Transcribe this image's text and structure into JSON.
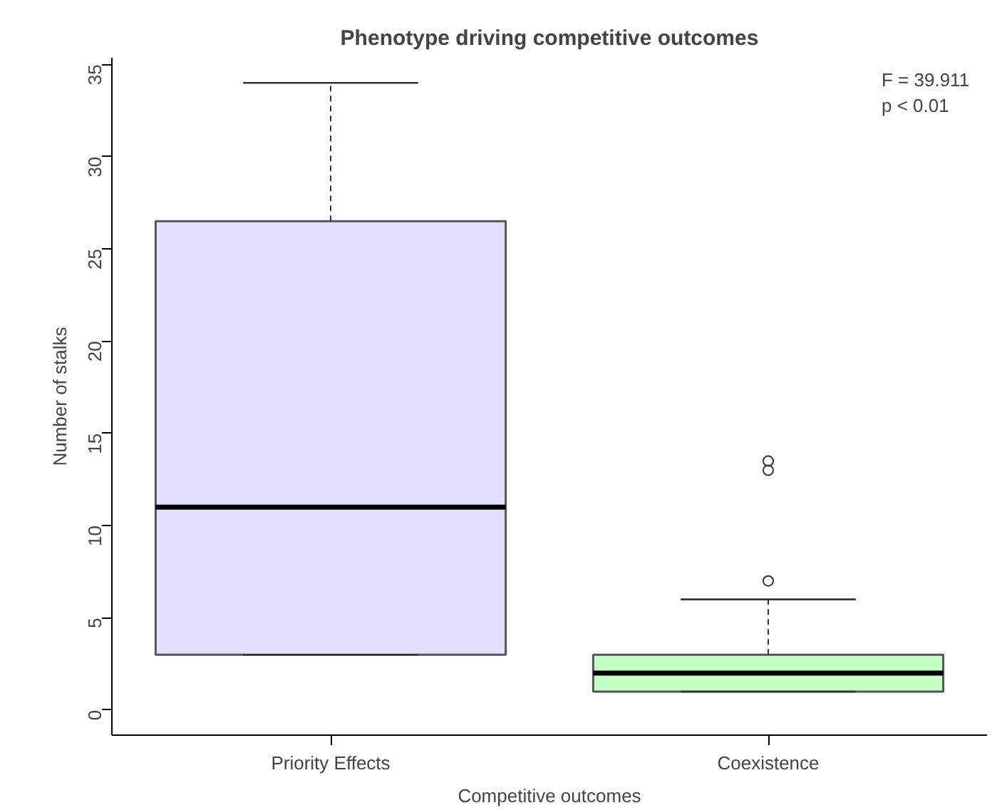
{
  "chart_data": {
    "type": "box",
    "title": "Phenotype driving competitive outcomes",
    "xlabel": "Competitive outcomes",
    "ylabel": "Number of stalks",
    "categories": [
      "Priority Effects",
      "Coexistence"
    ],
    "colors": [
      "#e1e1ff",
      "#c6ffc6"
    ],
    "boxes": [
      {
        "low": 3,
        "q1": 3,
        "median": 11,
        "q3": 26.5,
        "high": 34
      },
      {
        "low": 1,
        "q1": 1,
        "median": 2,
        "q3": 3,
        "high": 6,
        "outliers": [
          7,
          13,
          13.5
        ]
      }
    ],
    "ylim": [
      -1.36,
      35.36
    ],
    "yticks": [
      0,
      5,
      10,
      15,
      20,
      25,
      30,
      35
    ],
    "annotations": [
      "F = 39.911",
      "p < 0.01"
    ],
    "grid": false
  }
}
